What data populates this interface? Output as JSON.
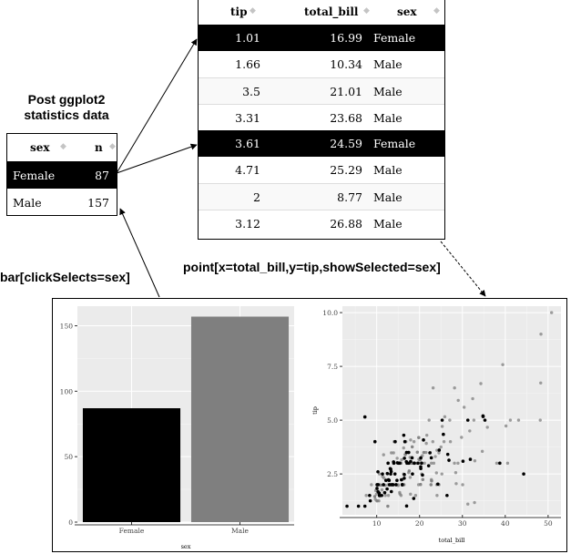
{
  "captions": {
    "post_stats": [
      "Post ggplot2",
      "statistics data"
    ],
    "bar_spec": "bar[clickSelects=sex]",
    "point_spec": "point[x=total_bill,y=tip,showSelected=sex]"
  },
  "summary_table": {
    "headers": [
      "sex",
      "n"
    ],
    "rows": [
      {
        "sex": "Female",
        "n": "87",
        "selected": true
      },
      {
        "sex": "Male",
        "n": "157",
        "selected": false
      }
    ]
  },
  "data_table": {
    "headers": [
      "tip",
      "total_bill",
      "sex"
    ],
    "rows": [
      {
        "tip": "1.01",
        "total_bill": "16.99",
        "sex": "Female",
        "selected": true
      },
      {
        "tip": "1.66",
        "total_bill": "10.34",
        "sex": "Male",
        "selected": false
      },
      {
        "tip": "3.5",
        "total_bill": "21.01",
        "sex": "Male",
        "selected": false
      },
      {
        "tip": "3.31",
        "total_bill": "23.68",
        "sex": "Male",
        "selected": false
      },
      {
        "tip": "3.61",
        "total_bill": "24.59",
        "sex": "Female",
        "selected": true
      },
      {
        "tip": "4.71",
        "total_bill": "25.29",
        "sex": "Male",
        "selected": false
      },
      {
        "tip": "2",
        "total_bill": "8.77",
        "sex": "Male",
        "selected": false
      },
      {
        "tip": "3.12",
        "total_bill": "26.88",
        "sex": "Male",
        "selected": false
      }
    ]
  },
  "colors": {
    "selected": "#000000",
    "unselected": "#7f7f7f",
    "panel_bg": "#ebebeb",
    "grid": "#ffffff"
  },
  "chart_data": [
    {
      "type": "bar",
      "categories": [
        "Female",
        "Male"
      ],
      "values": [
        87,
        157
      ],
      "bar_colors": [
        "#000000",
        "#7f7f7f"
      ],
      "xlabel": "sex",
      "ylabel": "",
      "ylim": [
        0,
        165
      ],
      "yticks": [
        0,
        50,
        100,
        150
      ],
      "ytick_labels": [
        "0",
        "50",
        "100",
        "150"
      ]
    },
    {
      "type": "scatter",
      "xlabel": "total_bill",
      "ylabel": "tip",
      "xlim": [
        2,
        53
      ],
      "ylim": [
        0.6,
        10.3
      ],
      "xticks": [
        10,
        20,
        30,
        40,
        50
      ],
      "xtick_labels": [
        "10",
        "20",
        "30",
        "40",
        "50"
      ],
      "yticks": [
        2.5,
        5.0,
        7.5,
        10.0
      ],
      "ytick_labels": [
        "2.5",
        "5.0",
        "7.5",
        "10.0"
      ],
      "series": [
        {
          "name": "Female",
          "color": "#000000",
          "x": [
            16.99,
            24.59,
            35.26,
            14.83,
            10.33,
            16.97,
            20.29,
            15.77,
            19.65,
            15.06,
            20.69,
            16.93,
            10.29,
            34.81,
            26.41,
            16.45,
            3.07,
            17.07,
            26.86,
            25.28,
            14.73,
            10.07,
            34.83,
            5.75,
            16.32,
            22.75,
            11.35,
            15.38,
            44.3,
            22.42,
            20.92,
            14.31,
            7.25,
            31.85,
            16.47,
            9.6,
            26.59,
            38.73,
            24.27,
            30.14,
            12.43,
            13.42,
            8.51,
            10.65,
            12.48,
            15.98,
            13.27,
            13.94,
            12.16,
            13.28,
            12.9,
            11.59,
            18.64,
            13.0,
            12.76,
            17.51,
            13.51,
            13.39,
            14.52,
            11.17,
            10.09,
            14.26,
            8.35,
            11.87,
            10.59,
            13.16,
            17.47,
            18.78,
            20.49,
            10.34,
            10.65,
            15.95,
            18.26,
            14.0,
            7.25,
            13.81,
            17.92,
            12.65,
            16.43,
            16.58,
            20.27,
            18.35,
            25.56,
            20.29,
            31.27,
            18.78,
            22.12
          ],
          "y": [
            1.01,
            3.61,
            5.0,
            3.02,
            1.67,
            3.5,
            2.75,
            2.23,
            3.0,
            3.0,
            2.45,
            3.07,
            2.6,
            5.2,
            1.5,
            2.47,
            1.0,
            3.0,
            3.14,
            5.0,
            2.2,
            1.83,
            5.17,
            1.0,
            4.3,
            3.25,
            2.5,
            3.0,
            2.5,
            3.48,
            4.08,
            4.0,
            1.0,
            3.18,
            3.23,
            4.0,
            3.41,
            3.0,
            2.03,
            3.09,
            1.8,
            1.68,
            1.25,
            1.5,
            2.52,
            2.0,
            2.5,
            3.06,
            2.2,
            2.72,
            2.2,
            2.0,
            1.36,
            2.0,
            2.23,
            3.0,
            2.0,
            2.61,
            2.0,
            1.5,
            2.0,
            2.5,
            1.5,
            1.63,
            1.61,
            2.75,
            3.5,
            3.0,
            3.0,
            2.0,
            1.5,
            2.0,
            3.25,
            3.0,
            5.15,
            2.0,
            3.08,
            3.0,
            2.3,
            4.0,
            2.83,
            2.5,
            4.34,
            3.25,
            5.0,
            3.0,
            2.88
          ]
        },
        {
          "name": "Male",
          "color": "#7f7f7f",
          "x": [
            10.34,
            21.01,
            23.68,
            25.29,
            8.77,
            26.88,
            15.04,
            14.78,
            10.27,
            15.42,
            18.43,
            21.58,
            16.29,
            20.65,
            17.92,
            39.42,
            19.82,
            17.81,
            13.37,
            12.69,
            21.7,
            9.55,
            18.35,
            15.69,
            17.46,
            20.23,
            13.81,
            11.02,
            18.29,
            17.59,
            20.08,
            16.0,
            34.3,
            41.19,
            9.68,
            30.4,
            18.29,
            22.23,
            32.4,
            28.55,
            18.04,
            12.54,
            13.0,
            9.94,
            25.56,
            19.49,
            38.01,
            11.24,
            48.27,
            20.29,
            13.81,
            11.02,
            18.29,
            17.59,
            20.08,
            16.0,
            19.44,
            16.66,
            11.69,
            22.76,
            25.71,
            23.95,
            48.33,
            40.55,
            20.76,
            24.52,
            16.04,
            29.03,
            50.81,
            15.81,
            7.25,
            31.71,
            22.67,
            27.2,
            22.82,
            19.77,
            28.97,
            22.49,
            32.68,
            15.53,
            16.27,
            12.03,
            21.5,
            19.81,
            28.15,
            25.0,
            10.63,
            20.23,
            24.06,
            17.78,
            32.9,
            32.83,
            35.83,
            48.17,
            25.89,
            28.44,
            20.45,
            13.28,
            24.01,
            15.69,
            10.07,
            12.6,
            11.61,
            10.77,
            15.53,
            10.07,
            12.6,
            17.89,
            15.38,
            40.17,
            27.05,
            14.48,
            16.66,
            43.11,
            7.56,
            22.76,
            17.29,
            20.45,
            13.42,
            9.78,
            22.82,
            12.02,
            15.36,
            20.76,
            16.31,
            34.65,
            23.33,
            23.17,
            24.55,
            19.08,
            13.51,
            16.4,
            30.06,
            25.21,
            20.49,
            14.07,
            19.49,
            12.74,
            10.51,
            16.82,
            19.81,
            11.38,
            15.01,
            28.17,
            31.27,
            9.55,
            23.1,
            18.28,
            18.71,
            24.08,
            29.8,
            22.67,
            10.63,
            13.94,
            21.01,
            21.16,
            17.31
          ],
          "y": [
            1.66,
            3.5,
            3.31,
            4.71,
            2.0,
            3.12,
            1.96,
            3.23,
            1.71,
            1.57,
            3.0,
            3.92,
            3.71,
            3.35,
            4.08,
            7.58,
            3.18,
            2.34,
            2.0,
            2.0,
            4.3,
            1.45,
            2.5,
            3.0,
            2.56,
            2.01,
            2.0,
            1.98,
            3.76,
            2.64,
            3.15,
            2.0,
            6.7,
            5.0,
            1.32,
            5.6,
            3.0,
            5.0,
            6.0,
            2.05,
            3.0,
            2.5,
            2.0,
            1.56,
            4.34,
            3.51,
            3.0,
            1.76,
            6.73,
            3.21,
            2.0,
            1.98,
            3.76,
            2.64,
            3.15,
            2.0,
            3.0,
            3.4,
            2.31,
            2.24,
            4.0,
            2.55,
            9.0,
            3.0,
            2.24,
            3.48,
            2.24,
            5.92,
            10.0,
            3.16,
            5.15,
            4.5,
            2.0,
            4.0,
            2.18,
            2.0,
            3.0,
            3.5,
            5.0,
            3.0,
            2.5,
            1.5,
            3.5,
            4.19,
            3.0,
            3.75,
            2.0,
            2.01,
            3.6,
            3.27,
            3.11,
            1.17,
            4.67,
            5.0,
            5.16,
            2.56,
            3.0,
            2.72,
            2.0,
            1.5,
            1.25,
            1.0,
            3.39,
            1.47,
            3.0,
            1.25,
            1.0,
            1.56,
            3.0,
            4.73,
            5.0,
            2.0,
            3.4,
            5.0,
            1.5,
            3.0,
            3.0,
            3.0,
            3.48,
            1.73,
            2.18,
            1.97,
            1.64,
            2.24,
            2.0,
            3.55,
            3.0,
            6.5,
            2.0,
            1.5,
            2.0,
            2.0,
            2.0,
            2.5,
            2.5,
            4.0,
            3.51,
            1.5,
            1.25,
            4.0,
            4.19,
            2.38,
            2.0,
            6.5,
            1.1,
            1.45,
            4.0,
            3.0,
            4.0,
            1.5,
            4.2,
            2.0,
            2.5,
            3.48,
            3.5,
            3.0,
            3.5
          ]
        }
      ]
    }
  ]
}
